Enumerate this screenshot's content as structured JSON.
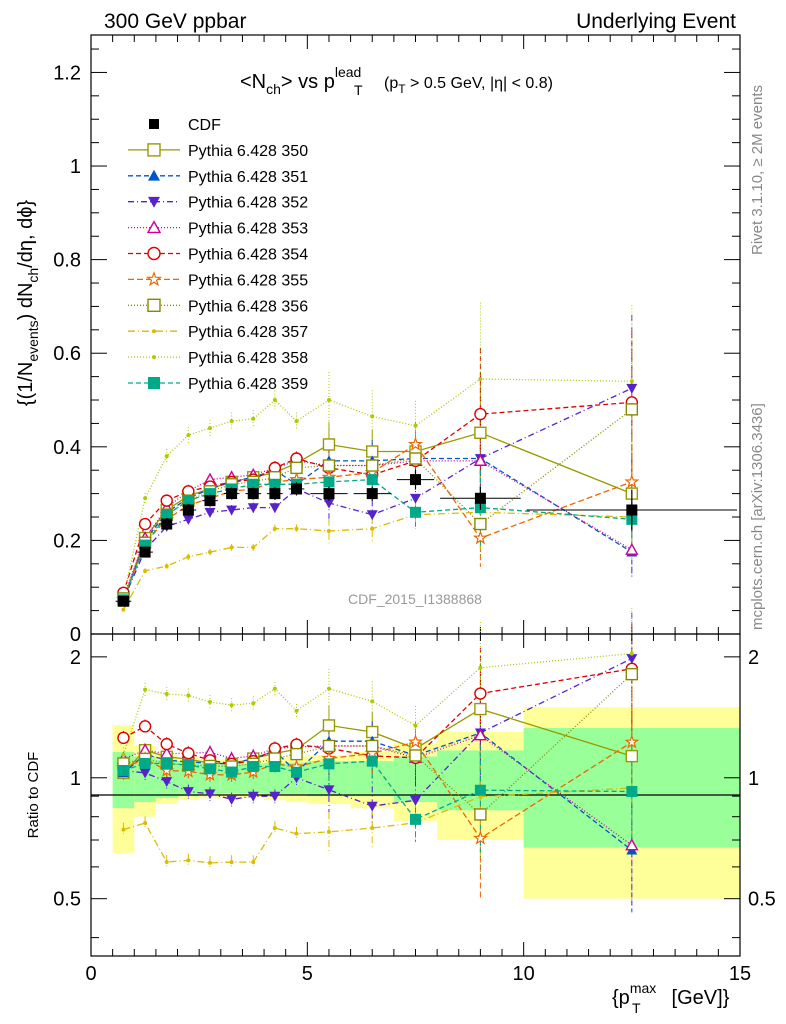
{
  "header": {
    "left": "300 GeV ppbar",
    "right": "Underlying Event",
    "side_top": "Rivet 3.1.10, ≥ 2M events",
    "side_bottom": "mcplots.cern.ch [arXiv:1306.3436]"
  },
  "chart_data": {
    "type": "line",
    "title_main": "<N",
    "title_main_sub": "ch",
    "title_vs": "> vs p",
    "title_vs_sup": "lead",
    "title_vs_sub": "T",
    "title_cut": "(p",
    "title_cut_sub": "T",
    "title_cut_rest": " > 0.5 GeV, |η| < 0.8)",
    "watermark": "CDF_2015_I1388868",
    "ylabel_parts": [
      "{(1/N",
      "events",
      ") dN",
      "ch",
      "/dη, dϕ}"
    ],
    "ratio_ylabel": "Ratio to CDF",
    "xlabel": "{p",
    "xlabel_sup": "max",
    "xlabel_sub": "T",
    "xlabel_rest": " [GeV]}",
    "xlim": [
      0,
      15
    ],
    "ylim_main": [
      0,
      1.28
    ],
    "ylim_ratio": [
      0.36,
      2.28
    ],
    "ratio_log": true,
    "x_ticks": [
      "0",
      "5",
      "10",
      "15"
    ],
    "x_tick_values": [
      0,
      5,
      10,
      15
    ],
    "y_ticks_main": [
      "0",
      "0.2",
      "0.4",
      "0.6",
      "0.8",
      "1",
      "1.2"
    ],
    "y_tick_values_main": [
      0,
      0.2,
      0.4,
      0.6,
      0.8,
      1.0,
      1.2
    ],
    "y_ticks_ratio": [
      "0.5",
      "1",
      "2"
    ],
    "y_tick_values_ratio": [
      0.5,
      1,
      2
    ],
    "bin_edges": [
      0.5,
      1.0,
      1.5,
      2.0,
      2.5,
      3.0,
      3.5,
      4.0,
      4.5,
      5.0,
      6.0,
      7.0,
      8.0,
      10.0,
      15.0
    ],
    "x": [
      0.75,
      1.25,
      1.75,
      2.25,
      2.75,
      3.25,
      3.75,
      4.25,
      4.75,
      5.5,
      6.5,
      7.5,
      9.0,
      12.5
    ],
    "data": {
      "name": "CDF",
      "values": [
        0.07,
        0.175,
        0.235,
        0.265,
        0.285,
        0.3,
        0.3,
        0.3,
        0.31,
        0.3,
        0.3,
        0.33,
        0.29,
        0.265
      ],
      "band_inner": [
        0.16,
        0.13,
        0.11,
        0.1,
        0.09,
        0.085,
        0.085,
        0.09,
        0.09,
        0.1,
        0.1,
        0.13,
        0.17,
        0.33
      ],
      "band_outer": [
        0.35,
        0.2,
        0.14,
        0.12,
        0.11,
        0.11,
        0.11,
        0.12,
        0.13,
        0.14,
        0.16,
        0.22,
        0.3,
        0.5
      ]
    },
    "series": [
      {
        "name": "Pythia 6.428 350",
        "color": "#999900",
        "marker": "square-open",
        "dash": "",
        "values": [
          0.072,
          0.205,
          0.265,
          0.295,
          0.31,
          0.325,
          0.335,
          0.345,
          0.365,
          0.405,
          0.39,
          0.39,
          0.43,
          0.3
        ]
      },
      {
        "name": "Pythia 6.428 351",
        "color": "#0055cc",
        "marker": "triangle-up",
        "dash": "5,3",
        "values": [
          0.072,
          0.2,
          0.26,
          0.29,
          0.31,
          0.325,
          0.335,
          0.35,
          0.32,
          0.37,
          0.37,
          0.375,
          0.375,
          0.175
        ]
      },
      {
        "name": "Pythia 6.428 352",
        "color": "#5522cc",
        "marker": "triangle-down",
        "dash": "6,3,1,3",
        "values": [
          0.073,
          0.18,
          0.23,
          0.245,
          0.26,
          0.265,
          0.27,
          0.27,
          0.31,
          0.28,
          0.255,
          0.29,
          0.375,
          0.525
        ]
      },
      {
        "name": "Pythia 6.428 353",
        "color": "#cc0099",
        "marker": "triangle-open",
        "dash": "1,2",
        "values": [
          0.078,
          0.205,
          0.27,
          0.305,
          0.33,
          0.335,
          0.34,
          0.355,
          0.37,
          0.36,
          0.36,
          0.37,
          0.37,
          0.18
        ]
      },
      {
        "name": "Pythia 6.428 354",
        "color": "#dd0000",
        "marker": "circle-open",
        "dash": "5,3",
        "values": [
          0.088,
          0.235,
          0.285,
          0.305,
          0.315,
          0.325,
          0.33,
          0.355,
          0.375,
          0.355,
          0.34,
          0.37,
          0.47,
          0.495
        ]
      },
      {
        "name": "Pythia 6.428 355",
        "color": "#ee6600",
        "marker": "star-open",
        "dash": "6,3",
        "values": [
          0.074,
          0.195,
          0.245,
          0.275,
          0.29,
          0.305,
          0.31,
          0.325,
          0.33,
          0.335,
          0.345,
          0.405,
          0.205,
          0.325
        ]
      },
      {
        "name": "Pythia 6.428 356",
        "color": "#888800",
        "marker": "square-open",
        "dash": "1,2",
        "values": [
          0.076,
          0.195,
          0.255,
          0.285,
          0.305,
          0.32,
          0.325,
          0.335,
          0.355,
          0.36,
          0.36,
          0.375,
          0.235,
          0.48
        ]
      },
      {
        "name": "Pythia 6.428 357",
        "color": "#ddbb00",
        "marker": "dot",
        "dash": "7,3,1,3",
        "values": [
          0.052,
          0.135,
          0.145,
          0.165,
          0.175,
          0.185,
          0.185,
          0.225,
          0.225,
          0.22,
          0.225,
          0.255,
          0.26,
          0.25
        ]
      },
      {
        "name": "Pythia 6.428 358",
        "color": "#aacc00",
        "marker": "dot",
        "dash": "1,2",
        "values": [
          0.08,
          0.29,
          0.38,
          0.425,
          0.44,
          0.455,
          0.46,
          0.5,
          0.455,
          0.5,
          0.465,
          0.445,
          0.545,
          0.54
        ]
      },
      {
        "name": "Pythia 6.428 359",
        "color": "#00aa88",
        "marker": "square",
        "dash": "5,3",
        "values": [
          0.073,
          0.19,
          0.255,
          0.285,
          0.3,
          0.31,
          0.32,
          0.32,
          0.32,
          0.325,
          0.33,
          0.26,
          0.27,
          0.245
        ]
      }
    ]
  }
}
